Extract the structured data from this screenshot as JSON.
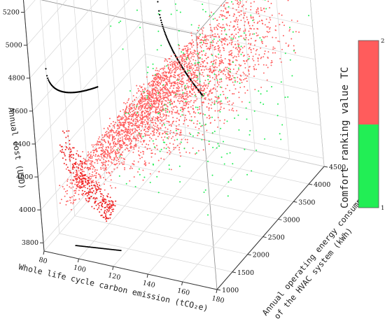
{
  "chart_data": {
    "type": "scatter",
    "projection": "3d",
    "x_axis": {
      "label": "Whole life cycle carbon emission (tCO₂e)",
      "ticks": [
        "80",
        "100",
        "120",
        "140",
        "160",
        "180"
      ],
      "range": [
        80,
        180
      ]
    },
    "y_axis": {
      "label_line1": "Annual operating energy consumption",
      "label_line2": "of the HVAC system (kWh)",
      "ticks": [
        "1000",
        "1500",
        "2000",
        "2500",
        "3000",
        "3500",
        "4000",
        "4500"
      ],
      "range": [
        1000,
        4500
      ]
    },
    "z_axis": {
      "label": "Annual cost (USD)",
      "ticks": [
        "3800",
        "4000",
        "4200",
        "4400",
        "4600",
        "4800",
        "5000",
        "5200"
      ],
      "range": [
        3750,
        5300
      ]
    },
    "colorbar": {
      "label": "Comfort ranking value TC",
      "ticks": [
        "1",
        "2"
      ],
      "colors": {
        "value_1": "#22ee55",
        "value_2": "#ff5c5c"
      }
    },
    "series": [
      {
        "description": "comfort value 2",
        "color": "#ff5c5c",
        "point_count": 3000,
        "x_range": [
          92,
          178
        ],
        "y_range": [
          1000,
          4300
        ],
        "z_range": [
          3980,
          5200
        ]
      },
      {
        "description": "comfort value 1",
        "color": "#22ee55",
        "point_count": 260,
        "x_range": [
          115,
          180
        ],
        "y_range": [
          1300,
          4500
        ],
        "z_range": [
          4100,
          5150
        ]
      },
      {
        "description": "pareto front projections",
        "color": "#000000",
        "projections": [
          "x-z wall",
          "y-z wall",
          "x-y floor"
        ]
      }
    ],
    "grid": true
  }
}
